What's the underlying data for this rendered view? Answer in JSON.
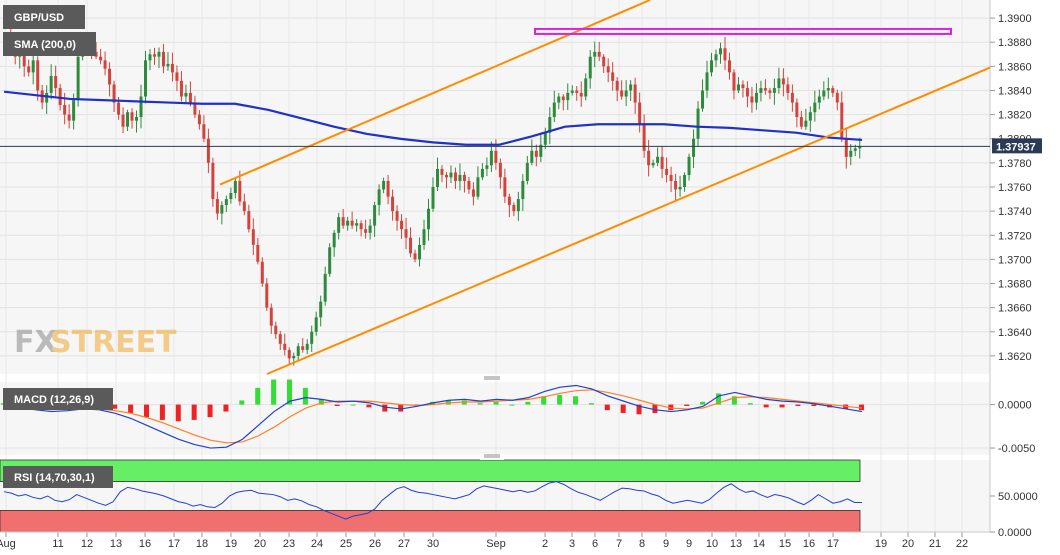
{
  "colors": {
    "bull": "#2e8b3d",
    "bear": "#d2443b",
    "sma": "#2030c8",
    "trend": "#ff8c00",
    "resistance": "#e020e0",
    "macd_line": "#2040d0",
    "signal_line": "#ff7f27",
    "hist_pos": "#33dd33",
    "hist_neg": "#ee2222",
    "rsi_line": "#2040d0",
    "rsi_upper_zone": "#66ee66",
    "rsi_lower_zone": "#f07070",
    "price_tag": "#2b3a55"
  },
  "logo": {
    "fx": "FX",
    "street": "STREET"
  },
  "chart_data": [
    {
      "type": "candlestick",
      "title": "GBP/USD",
      "indicator_label": "SMA (200,0)",
      "last_price_label": "1.37937",
      "last_price": 1.37937,
      "ylim": [
        1.3605,
        1.3915
      ],
      "yticks": [
        "1.3620",
        "1.3640",
        "1.3660",
        "1.3680",
        "1.3700",
        "1.3720",
        "1.3740",
        "1.3760",
        "1.3780",
        "1.3800",
        "1.3820",
        "1.3840",
        "1.3860",
        "1.3880",
        "1.3900"
      ],
      "xticks": [
        "Aug",
        "11",
        "12",
        "13",
        "16",
        "17",
        "18",
        "19",
        "20",
        "23",
        "24",
        "25",
        "26",
        "27",
        "30",
        "Sep",
        "2",
        "3",
        "6",
        "7",
        "8",
        "9",
        "10",
        "13",
        "14",
        "15",
        "16",
        "17",
        "19",
        "20",
        "21",
        "22"
      ],
      "ohlc_close": [
        1.3882,
        1.3878,
        1.3868,
        1.3875,
        1.386,
        1.3855,
        1.3865,
        1.384,
        1.383,
        1.3838,
        1.3852,
        1.3842,
        1.3828,
        1.382,
        1.3815,
        1.3832,
        1.3868,
        1.388,
        1.3878,
        1.3872,
        1.3868,
        1.3865,
        1.3858,
        1.3845,
        1.383,
        1.382,
        1.381,
        1.3822,
        1.3815,
        1.3818,
        1.3835,
        1.3865,
        1.387,
        1.3868,
        1.3872,
        1.386,
        1.3862,
        1.3855,
        1.3848,
        1.3835,
        1.3838,
        1.383,
        1.382,
        1.3812,
        1.38,
        1.378,
        1.375,
        1.3738,
        1.3745,
        1.375,
        1.3755,
        1.3765,
        1.3748,
        1.374,
        1.3725,
        1.3712,
        1.3698,
        1.368,
        1.366,
        1.3645,
        1.3638,
        1.363,
        1.3625,
        1.3618,
        1.362,
        1.3628,
        1.3625,
        1.363,
        1.364,
        1.3652,
        1.3665,
        1.3688,
        1.371,
        1.3722,
        1.3735,
        1.3728,
        1.3732,
        1.3728,
        1.373,
        1.3725,
        1.3722,
        1.3728,
        1.3745,
        1.3758,
        1.3765,
        1.3752,
        1.374,
        1.3732,
        1.3725,
        1.3718,
        1.3705,
        1.37,
        1.3712,
        1.3725,
        1.3742,
        1.376,
        1.3775,
        1.377,
        1.3768,
        1.3772,
        1.3765,
        1.377,
        1.3765,
        1.3758,
        1.3752,
        1.3768,
        1.3775,
        1.3778,
        1.379,
        1.378,
        1.3768,
        1.3752,
        1.3745,
        1.374,
        1.375,
        1.3765,
        1.378,
        1.379,
        1.3785,
        1.3795,
        1.3805,
        1.3818,
        1.383,
        1.3835,
        1.3832,
        1.3838,
        1.384,
        1.3838,
        1.3835,
        1.385,
        1.3868,
        1.3872,
        1.3868,
        1.386,
        1.3855,
        1.3848,
        1.384,
        1.3835,
        1.384,
        1.3845,
        1.383,
        1.3812,
        1.379,
        1.3778,
        1.378,
        1.3785,
        1.3775,
        1.377,
        1.3765,
        1.3758,
        1.376,
        1.377,
        1.3785,
        1.38,
        1.3825,
        1.384,
        1.3855,
        1.3865,
        1.387,
        1.3875,
        1.3865,
        1.3855,
        1.384,
        1.3845,
        1.3842,
        1.3835,
        1.383,
        1.3838,
        1.3842,
        1.384,
        1.3838,
        1.3842,
        1.385,
        1.3845,
        1.3838,
        1.383,
        1.3818,
        1.381,
        1.3815,
        1.3822,
        1.383,
        1.3835,
        1.384,
        1.3842,
        1.3838,
        1.383,
        1.38,
        1.3785,
        1.379,
        1.3792,
        1.3794
      ],
      "resistance_level": 1.389,
      "sma_200_values": [
        1.3839,
        1.3836,
        1.3833,
        1.3832,
        1.3831,
        1.383,
        1.3829,
        1.3829,
        1.3824,
        1.3817,
        1.381,
        1.3804,
        1.38,
        1.3797,
        1.3795,
        1.3795,
        1.3802,
        1.381,
        1.3812,
        1.3812,
        1.3812,
        1.381,
        1.3809,
        1.3807,
        1.3805,
        1.3801,
        1.3799
      ]
    },
    {
      "type": "line",
      "title": "MACD (12,26,9)",
      "yticks": [
        "0.0000",
        "-0.0050"
      ],
      "ylim": [
        -0.0058,
        0.0026
      ],
      "macd": [
        0.0002,
        0.0,
        -0.0006,
        -0.0008,
        -0.0007,
        -0.0005,
        -0.0006,
        -0.001,
        -0.0016,
        -0.0024,
        -0.0032,
        -0.004,
        -0.0046,
        -0.005,
        -0.0049,
        -0.004,
        -0.0024,
        -0.0008,
        0.0004,
        0.0008,
        0.0006,
        0.0003,
        0.0004,
        0.0002,
        -0.0003,
        -0.0005,
        -0.0002,
        0.0002,
        0.0005,
        0.0006,
        0.0004,
        0.0006,
        0.0005,
        0.0008,
        0.0015,
        0.002,
        0.0022,
        0.0018,
        0.001,
        0.0004,
        -0.0002,
        -0.0006,
        -0.0008,
        -0.0006,
        -0.0002,
        0.001,
        0.0014,
        0.001,
        0.0006,
        0.0004,
        0.0003,
        0.0001,
        -0.0002,
        -0.0005,
        -0.0008
      ],
      "signal": [
        0.0001,
        0.0001,
        -0.0002,
        -0.0004,
        -0.0005,
        -0.0005,
        -0.0005,
        -0.0007,
        -0.001,
        -0.0015,
        -0.0021,
        -0.0028,
        -0.0035,
        -0.0041,
        -0.0044,
        -0.0043,
        -0.0036,
        -0.0026,
        -0.0014,
        -0.0004,
        0.0002,
        0.0004,
        0.0004,
        0.0004,
        0.0002,
        0.0,
        -0.0001,
        0.0,
        0.0002,
        0.0003,
        0.0003,
        0.0004,
        0.0005,
        0.0006,
        0.0009,
        0.0013,
        0.0016,
        0.0017,
        0.0014,
        0.001,
        0.0005,
        0.0,
        -0.0004,
        -0.0005,
        -0.0004,
        0.0002,
        0.0008,
        0.0009,
        0.0008,
        0.0006,
        0.0004,
        0.0002,
        0.0,
        -0.0002,
        -0.0004
      ]
    },
    {
      "type": "line",
      "title": "RSI (14,70,30,1)",
      "yticks": [
        "50.0000",
        "0.0000"
      ],
      "ylim": [
        0,
        100
      ],
      "overbought": 70,
      "oversold": 30,
      "values": [
        56,
        54,
        50,
        52,
        48,
        46,
        50,
        44,
        42,
        45,
        52,
        48,
        44,
        40,
        37,
        42,
        56,
        62,
        60,
        57,
        55,
        53,
        50,
        46,
        42,
        40,
        36,
        38,
        35,
        34,
        40,
        50,
        55,
        57,
        58,
        54,
        53,
        52,
        49,
        44,
        46,
        43,
        38,
        35,
        30,
        26,
        22,
        18,
        22,
        24,
        26,
        32,
        44,
        52,
        60,
        63,
        58,
        55,
        54,
        52,
        50,
        48,
        46,
        49,
        52,
        60,
        64,
        62,
        60,
        58,
        56,
        58,
        55,
        57,
        63,
        68,
        70,
        66,
        60,
        55,
        52,
        48,
        44,
        50,
        56,
        61,
        60,
        58,
        57,
        53,
        50,
        44,
        40,
        42,
        44,
        42,
        40,
        45,
        54,
        62,
        67,
        60,
        55,
        57,
        52,
        48,
        52,
        50,
        47,
        42,
        38,
        44,
        52,
        46,
        40,
        42,
        46,
        41,
        41
      ]
    }
  ]
}
